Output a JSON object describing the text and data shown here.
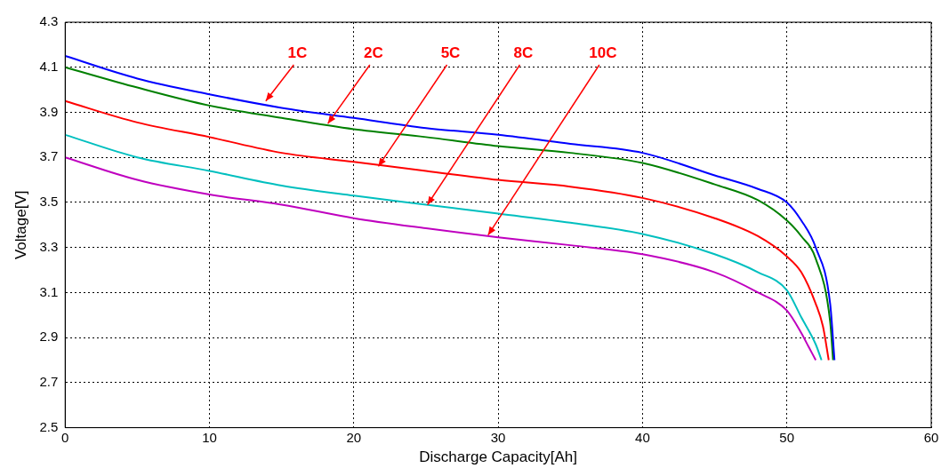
{
  "chart_data": {
    "type": "line",
    "xlabel": "Discharge Capacity[Ah]",
    "ylabel": "Voltage[V]",
    "xlim": [
      0,
      60
    ],
    "xticks": [
      0,
      10,
      20,
      30,
      40,
      50,
      60
    ],
    "ylim": [
      2.5,
      4.3
    ],
    "yticks": [
      2.5,
      2.7,
      2.9,
      3.1,
      3.3,
      3.5,
      3.7,
      3.9,
      4.1,
      4.3
    ],
    "grid": true,
    "legend": false,
    "marker": "none",
    "line_style": "solid",
    "series": [
      {
        "color": "#0000ff",
        "x": [
          0,
          5,
          10,
          15,
          20,
          25,
          30,
          35,
          40,
          45,
          48,
          50,
          51,
          52,
          53,
          53.3
        ],
        "values": [
          4.15,
          4.05,
          3.98,
          3.92,
          3.875,
          3.83,
          3.8,
          3.76,
          3.72,
          3.62,
          3.56,
          3.5,
          3.42,
          3.3,
          3.05,
          2.8
        ]
      },
      {
        "color": "#008000",
        "x": [
          0,
          5,
          10,
          15,
          20,
          25,
          30,
          35,
          40,
          45,
          48,
          50,
          51,
          52,
          53,
          53.2
        ],
        "values": [
          4.1,
          4.01,
          3.93,
          3.875,
          3.825,
          3.79,
          3.75,
          3.72,
          3.675,
          3.58,
          3.51,
          3.42,
          3.35,
          3.25,
          2.97,
          2.8
        ]
      },
      {
        "color": "#ff0000",
        "x": [
          0,
          5,
          10,
          15,
          20,
          25,
          30,
          35,
          40,
          45,
          48,
          50,
          51,
          52,
          52.5,
          52.9
        ],
        "values": [
          3.95,
          3.855,
          3.79,
          3.72,
          3.68,
          3.64,
          3.6,
          3.57,
          3.52,
          3.43,
          3.35,
          3.26,
          3.19,
          3.05,
          2.95,
          2.8
        ]
      },
      {
        "color": "#00bfbf",
        "x": [
          0,
          5,
          10,
          15,
          20,
          25,
          30,
          35,
          40,
          45,
          48,
          50,
          51,
          52,
          52.4
        ],
        "values": [
          3.8,
          3.7,
          3.64,
          3.575,
          3.53,
          3.49,
          3.45,
          3.41,
          3.36,
          3.27,
          3.19,
          3.11,
          2.99,
          2.87,
          2.8
        ]
      },
      {
        "color": "#bf00bf",
        "x": [
          0,
          5,
          10,
          15,
          20,
          25,
          30,
          35,
          40,
          45,
          48,
          50,
          51,
          51.5,
          52
        ],
        "values": [
          3.7,
          3.6,
          3.535,
          3.49,
          3.43,
          3.385,
          3.345,
          3.31,
          3.27,
          3.19,
          3.1,
          3.02,
          2.92,
          2.86,
          2.8
        ]
      }
    ],
    "annotations": [
      {
        "text": "1C",
        "x": 13.9,
        "y": 3.95
      },
      {
        "text": "2C",
        "x": 18.2,
        "y": 3.85
      },
      {
        "text": "5C",
        "x": 21.7,
        "y": 3.66
      },
      {
        "text": "8C",
        "x": 25.1,
        "y": 3.49
      },
      {
        "text": "10C",
        "x": 29.3,
        "y": 3.355
      }
    ]
  }
}
